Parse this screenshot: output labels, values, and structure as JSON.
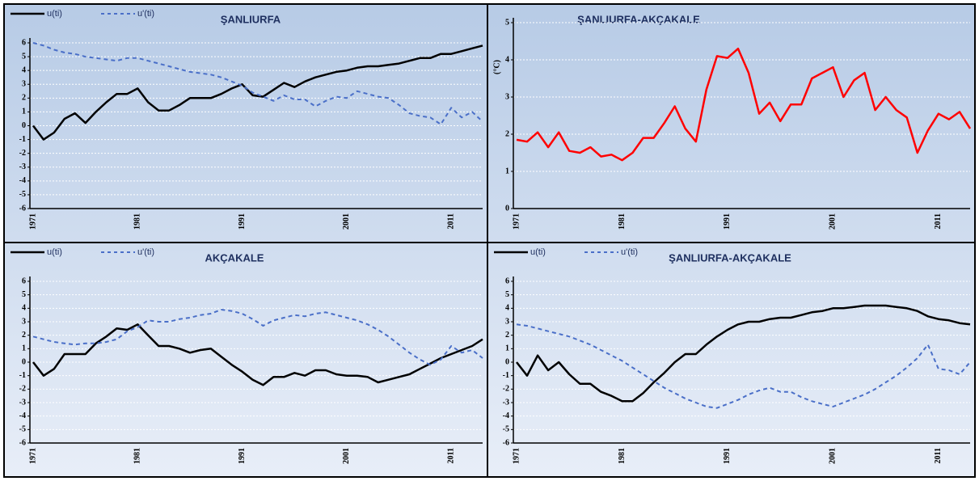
{
  "chart_data": [
    {
      "type": "line",
      "title": "ŞANLIURFA",
      "legend": "top-left",
      "grid": true,
      "categories": [
        "1971",
        null,
        null,
        null,
        null,
        null,
        null,
        null,
        null,
        null,
        "1981",
        null,
        null,
        null,
        null,
        null,
        null,
        null,
        null,
        null,
        "1991",
        null,
        null,
        null,
        null,
        null,
        null,
        null,
        null,
        null,
        "2001",
        null,
        null,
        null,
        null,
        null,
        null,
        null,
        null,
        null,
        "2011",
        null,
        null,
        null
      ],
      "ylim": [
        -6,
        6
      ],
      "yticks": [
        -6,
        -5,
        -4,
        -3,
        -2,
        -1,
        0,
        1,
        2,
        3,
        4,
        5,
        6
      ],
      "series": [
        {
          "name": "u(ti)",
          "color": "#000000",
          "style": "solid",
          "values": [
            0,
            -1,
            -0.5,
            0.5,
            0.9,
            0.2,
            1,
            1.7,
            2.3,
            2.3,
            2.7,
            1.7,
            1.1,
            1.1,
            1.5,
            2,
            2,
            2,
            2.3,
            2.7,
            3,
            2.2,
            2.1,
            2.6,
            3.1,
            2.8,
            3.2,
            3.5,
            3.7,
            3.9,
            4,
            4.2,
            4.3,
            4.3,
            4.4,
            4.5,
            4.7,
            4.9,
            4.9,
            5.2,
            5.2,
            5.4,
            5.6,
            5.8
          ]
        },
        {
          "name": "u'(ti)",
          "color": "#4a6fc8",
          "style": "dashed",
          "values": [
            6,
            5.8,
            5.5,
            5.3,
            5.2,
            5,
            4.9,
            4.8,
            4.7,
            4.9,
            4.9,
            4.7,
            4.5,
            4.3,
            4.1,
            3.9,
            3.8,
            3.7,
            3.5,
            3.2,
            2.9,
            2.4,
            2.1,
            1.8,
            2.2,
            1.9,
            1.9,
            1.4,
            1.8,
            2.1,
            2,
            2.5,
            2.3,
            2.1,
            2,
            1.5,
            0.9,
            0.7,
            0.6,
            0.1,
            1.3,
            0.6,
            1,
            0.3
          ]
        }
      ]
    },
    {
      "type": "line",
      "title": "ŞANLIURFA-AKÇAKALE",
      "ylabel": "(°C)",
      "grid": true,
      "categories": [
        "1971",
        null,
        null,
        null,
        null,
        null,
        null,
        null,
        null,
        null,
        "1981",
        null,
        null,
        null,
        null,
        null,
        null,
        null,
        null,
        null,
        "1991",
        null,
        null,
        null,
        null,
        null,
        null,
        null,
        null,
        null,
        "2001",
        null,
        null,
        null,
        null,
        null,
        null,
        null,
        null,
        null,
        "2011",
        null,
        null,
        null
      ],
      "ylim": [
        0,
        5
      ],
      "yticks": [
        0,
        1,
        2,
        3,
        4,
        5
      ],
      "series": [
        {
          "name": null,
          "color": "#ff0000",
          "style": "solid",
          "values": [
            1.85,
            1.8,
            2.05,
            1.65,
            2.05,
            1.55,
            1.5,
            1.65,
            1.4,
            1.45,
            1.3,
            1.5,
            1.9,
            1.9,
            2.3,
            2.75,
            2.15,
            1.8,
            3.2,
            4.1,
            4.05,
            4.3,
            3.65,
            2.55,
            2.85,
            2.35,
            2.8,
            2.8,
            3.5,
            3.65,
            3.8,
            3,
            3.45,
            3.65,
            2.65,
            3,
            2.65,
            2.45,
            1.5,
            2.1,
            2.55,
            2.4,
            2.6,
            2.15
          ]
        }
      ]
    },
    {
      "type": "line",
      "title": "AKÇAKALE",
      "legend": "top-left",
      "grid": true,
      "categories": [
        "1971",
        null,
        null,
        null,
        null,
        null,
        null,
        null,
        null,
        null,
        "1981",
        null,
        null,
        null,
        null,
        null,
        null,
        null,
        null,
        null,
        "1991",
        null,
        null,
        null,
        null,
        null,
        null,
        null,
        null,
        null,
        "2001",
        null,
        null,
        null,
        null,
        null,
        null,
        null,
        null,
        null,
        "2011",
        null,
        null,
        null
      ],
      "ylim": [
        -6,
        6
      ],
      "yticks": [
        -6,
        -5,
        -4,
        -3,
        -2,
        -1,
        0,
        1,
        2,
        3,
        4,
        5,
        6
      ],
      "series": [
        {
          "name": "u(ti)",
          "color": "#000000",
          "style": "solid",
          "values": [
            0,
            -1,
            -0.5,
            0.6,
            0.6,
            0.6,
            1.4,
            1.9,
            2.5,
            2.4,
            2.8,
            2,
            1.2,
            1.2,
            1,
            0.7,
            0.9,
            1,
            0.4,
            -0.2,
            -0.7,
            -1.3,
            -1.7,
            -1.1,
            -1.1,
            -0.8,
            -1,
            -0.6,
            -0.6,
            -0.9,
            -1,
            -1,
            -1.1,
            -1.5,
            -1.3,
            -1.1,
            -0.9,
            -0.5,
            -0.1,
            0.3,
            0.6,
            0.9,
            1.2,
            1.7
          ]
        },
        {
          "name": "u'(ti)",
          "color": "#4a6fc8",
          "style": "dashed",
          "values": [
            1.9,
            1.7,
            1.5,
            1.4,
            1.3,
            1.4,
            1.4,
            1.5,
            1.7,
            2.3,
            2.6,
            3.1,
            3,
            3,
            3.2,
            3.3,
            3.5,
            3.6,
            3.9,
            3.8,
            3.6,
            3.2,
            2.7,
            3.1,
            3.3,
            3.5,
            3.4,
            3.6,
            3.7,
            3.5,
            3.3,
            3.1,
            2.8,
            2.4,
            1.9,
            1.3,
            0.7,
            0.2,
            -0.2,
            0.2,
            1.2,
            0.7,
            0.9,
            0.3
          ]
        }
      ]
    },
    {
      "type": "line",
      "title": "ŞANLIURFA-AKÇAKALE",
      "legend": "top-left",
      "grid": true,
      "categories": [
        "1971",
        null,
        null,
        null,
        null,
        null,
        null,
        null,
        null,
        null,
        "1981",
        null,
        null,
        null,
        null,
        null,
        null,
        null,
        null,
        null,
        "1991",
        null,
        null,
        null,
        null,
        null,
        null,
        null,
        null,
        null,
        "2001",
        null,
        null,
        null,
        null,
        null,
        null,
        null,
        null,
        null,
        "2011",
        null,
        null,
        null
      ],
      "ylim": [
        -6,
        6
      ],
      "yticks": [
        -6,
        -5,
        -4,
        -3,
        -2,
        -1,
        0,
        1,
        2,
        3,
        4,
        5,
        6
      ],
      "series": [
        {
          "name": "u(ti)",
          "color": "#000000",
          "style": "solid",
          "values": [
            0,
            -1,
            0.5,
            -0.6,
            0,
            -0.9,
            -1.6,
            -1.6,
            -2.2,
            -2.5,
            -2.9,
            -2.9,
            -2.3,
            -1.5,
            -0.8,
            0,
            0.6,
            0.6,
            1.3,
            1.9,
            2.4,
            2.8,
            3,
            3,
            3.2,
            3.3,
            3.3,
            3.5,
            3.7,
            3.8,
            4,
            4,
            4.1,
            4.2,
            4.2,
            4.2,
            4.1,
            4,
            3.8,
            3.4,
            3.2,
            3.1,
            2.9,
            2.8
          ]
        },
        {
          "name": "u'(ti)",
          "color": "#4a6fc8",
          "style": "dashed",
          "values": [
            2.8,
            2.7,
            2.5,
            2.3,
            2.1,
            1.9,
            1.6,
            1.3,
            0.9,
            0.5,
            0.1,
            -0.4,
            -0.9,
            -1.4,
            -1.9,
            -2.3,
            -2.7,
            -3,
            -3.3,
            -3.4,
            -3.1,
            -2.8,
            -2.4,
            -2.1,
            -1.9,
            -2.2,
            -2.2,
            -2.6,
            -2.9,
            -3.1,
            -3.3,
            -3,
            -2.7,
            -2.4,
            -2,
            -1.5,
            -1,
            -0.4,
            0.3,
            1.3,
            -0.5,
            -0.6,
            -0.9,
            0
          ]
        }
      ]
    }
  ]
}
